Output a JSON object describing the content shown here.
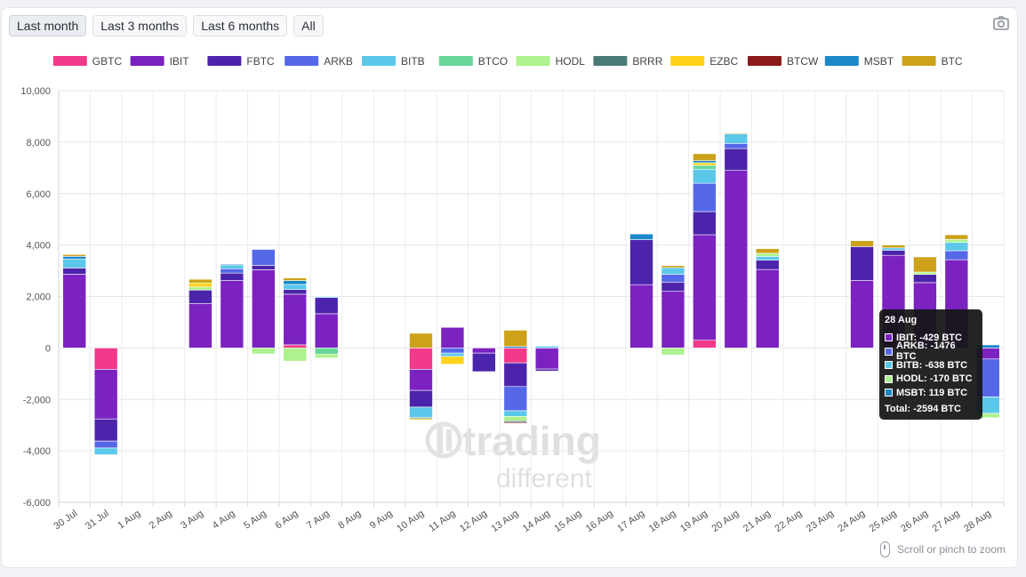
{
  "range_buttons": [
    "Last month",
    "Last 3 months",
    "Last 6 months",
    "All"
  ],
  "active_range": 0,
  "hint": "Scroll or pinch to zoom",
  "watermark": {
    "line1": "trading",
    "line2": "different"
  },
  "tooltip": {
    "title": "28 Aug",
    "rows": [
      {
        "text": "IBIT: -429 BTC",
        "color": "#7b22c1"
      },
      {
        "text": "ARKB: -1476 BTC",
        "color": "#5468e8"
      },
      {
        "text": "BITB: -638 BTC",
        "color": "#5bc8ea"
      },
      {
        "text": "HODL: -170 BTC",
        "color": "#adf28d"
      },
      {
        "text": "MSBT: 119 BTC",
        "color": "#1a88c9"
      }
    ],
    "total": "Total: -2594 BTC"
  },
  "chart_data": {
    "type": "bar",
    "stacked": true,
    "ylim": [
      -6000,
      10000
    ],
    "yticks": [
      10000,
      8000,
      6000,
      4000,
      2000,
      0,
      -2000,
      -4000,
      -6000
    ],
    "ytick_labels": [
      "10,000",
      "8,000",
      "6,000",
      "4,000",
      "2,000",
      "0",
      "-2,000",
      "-4,000",
      "-6,000"
    ],
    "grid": true,
    "legend_position": "top",
    "categories": [
      "30 Jul",
      "31 Jul",
      "1 Aug",
      "2 Aug",
      "3 Aug",
      "4 Aug",
      "5 Aug",
      "6 Aug",
      "7 Aug",
      "8 Aug",
      "9 Aug",
      "10 Aug",
      "11 Aug",
      "12 Aug",
      "13 Aug",
      "14 Aug",
      "15 Aug",
      "16 Aug",
      "17 Aug",
      "18 Aug",
      "19 Aug",
      "20 Aug",
      "21 Aug",
      "22 Aug",
      "23 Aug",
      "24 Aug",
      "25 Aug",
      "26 Aug",
      "27 Aug",
      "28 Aug"
    ],
    "series": [
      {
        "name": "GBTC",
        "color": "#f3398a",
        "values": [
          0,
          -830,
          0,
          0,
          0,
          0,
          0,
          120,
          0,
          0,
          0,
          -830,
          0,
          0,
          -580,
          0,
          0,
          0,
          0,
          0,
          300,
          0,
          0,
          0,
          0,
          0,
          0,
          0,
          0,
          0
        ]
      },
      {
        "name": "IBIT",
        "color": "#7b22c1",
        "values": [
          2870,
          -1930,
          0,
          0,
          1720,
          2620,
          3040,
          1970,
          1330,
          0,
          0,
          -820,
          800,
          -200,
          0,
          -820,
          0,
          0,
          2460,
          2200,
          4100,
          6900,
          3050,
          0,
          0,
          2620,
          3600,
          2540,
          3430,
          -429
        ]
      },
      {
        "name": "FBTC",
        "color": "#4c24ab",
        "values": [
          240,
          -860,
          0,
          0,
          530,
          290,
          170,
          180,
          630,
          0,
          0,
          -650,
          0,
          -720,
          -920,
          -80,
          0,
          0,
          1750,
          360,
          900,
          850,
          360,
          0,
          0,
          1320,
          200,
          320,
          0,
          0
        ]
      },
      {
        "name": "ARKB",
        "color": "#5468e8",
        "values": [
          0,
          -270,
          0,
          0,
          0,
          170,
          620,
          0,
          0,
          0,
          0,
          0,
          -200,
          0,
          -940,
          0,
          0,
          0,
          0,
          300,
          1100,
          200,
          0,
          0,
          0,
          0,
          0,
          0,
          350,
          -1476
        ]
      },
      {
        "name": "BITB",
        "color": "#5bc8ea",
        "values": [
          350,
          -260,
          0,
          0,
          0,
          150,
          0,
          200,
          40,
          0,
          0,
          -400,
          -130,
          0,
          -220,
          70,
          0,
          0,
          0,
          260,
          550,
          370,
          150,
          0,
          0,
          0,
          90,
          0,
          320,
          -638
        ]
      },
      {
        "name": "BTCO",
        "color": "#68d69a",
        "values": [
          0,
          0,
          0,
          0,
          0,
          0,
          0,
          0,
          -240,
          0,
          0,
          0,
          0,
          0,
          0,
          0,
          0,
          0,
          0,
          0,
          150,
          0,
          0,
          0,
          0,
          0,
          0,
          0,
          0,
          0
        ]
      },
      {
        "name": "HODL",
        "color": "#adf28d",
        "values": [
          0,
          0,
          0,
          0,
          120,
          0,
          -230,
          -510,
          -150,
          0,
          0,
          0,
          0,
          0,
          -170,
          0,
          0,
          0,
          0,
          -270,
          0,
          -40,
          120,
          0,
          0,
          0,
          0,
          90,
          120,
          -170
        ]
      },
      {
        "name": "BRRR",
        "color": "#4a7a78",
        "values": [
          0,
          0,
          0,
          0,
          0,
          0,
          0,
          0,
          0,
          0,
          0,
          -50,
          0,
          0,
          -60,
          0,
          0,
          0,
          0,
          0,
          0,
          0,
          0,
          0,
          0,
          0,
          0,
          0,
          0,
          0
        ]
      },
      {
        "name": "EZBC",
        "color": "#ffd21c",
        "values": [
          0,
          0,
          0,
          0,
          160,
          0,
          0,
          0,
          0,
          0,
          0,
          -50,
          -300,
          0,
          0,
          0,
          0,
          0,
          0,
          0,
          100,
          0,
          0,
          0,
          0,
          0,
          0,
          0,
          0,
          0
        ]
      },
      {
        "name": "BTCW",
        "color": "#8b1a1a",
        "values": [
          0,
          0,
          0,
          0,
          0,
          0,
          0,
          0,
          0,
          0,
          0,
          0,
          0,
          0,
          -40,
          0,
          0,
          0,
          0,
          0,
          0,
          0,
          0,
          0,
          0,
          0,
          0,
          0,
          0,
          0
        ]
      },
      {
        "name": "MSBT",
        "color": "#1a88c9",
        "values": [
          100,
          0,
          0,
          0,
          0,
          30,
          0,
          150,
          0,
          0,
          0,
          0,
          0,
          0,
          60,
          0,
          0,
          0,
          220,
          0,
          80,
          0,
          0,
          0,
          0,
          0,
          0,
          0,
          0,
          119
        ]
      },
      {
        "name": "BTC",
        "color": "#cda21a",
        "values": [
          70,
          0,
          0,
          0,
          140,
          0,
          0,
          100,
          0,
          0,
          0,
          570,
          0,
          0,
          630,
          0,
          0,
          0,
          0,
          80,
          270,
          30,
          180,
          0,
          0,
          230,
          110,
          590,
          180,
          0
        ]
      }
    ]
  }
}
